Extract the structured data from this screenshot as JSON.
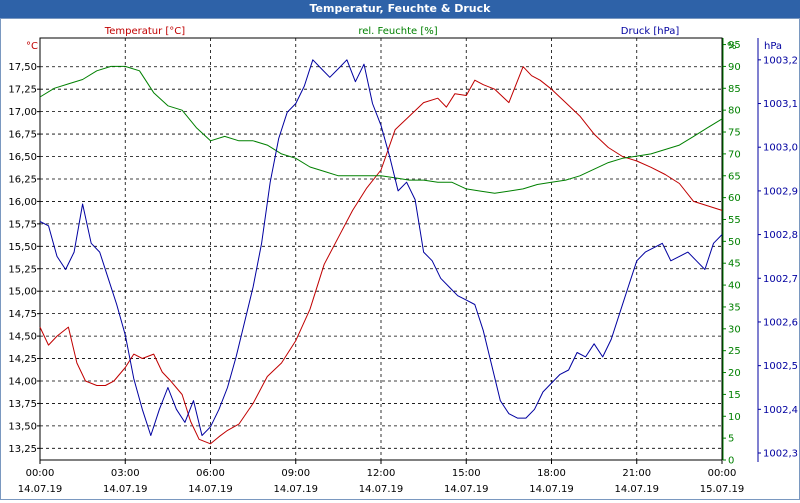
{
  "window": {
    "title": "Temperatur, Feuchte & Druck"
  },
  "chart_data": {
    "type": "line",
    "title": "Temperatur, Feuchte & Druck",
    "x_ticks": [
      {
        "time": "00:00",
        "date": "14.07.19"
      },
      {
        "time": "03:00",
        "date": "14.07.19"
      },
      {
        "time": "06:00",
        "date": "14.07.19"
      },
      {
        "time": "09:00",
        "date": "14.07.19"
      },
      {
        "time": "12:00",
        "date": "14.07.19"
      },
      {
        "time": "15:00",
        "date": "14.07.19"
      },
      {
        "time": "18:00",
        "date": "14.07.19"
      },
      {
        "time": "21:00",
        "date": "14.07.19"
      },
      {
        "time": "00:00",
        "date": "15.07.19"
      }
    ],
    "x_range_hours": [
      0,
      24
    ],
    "axes": {
      "temperature": {
        "unit_label": "°C",
        "title": "Temperatur [°C]",
        "color": "#c00000",
        "ylim": [
          13.12,
          17.82
        ],
        "ticks": [
          "13,25",
          "13,50",
          "13,75",
          "14,00",
          "14,25",
          "14,50",
          "14,75",
          "15,00",
          "15,25",
          "15,50",
          "15,75",
          "16,00",
          "16,25",
          "16,50",
          "16,75",
          "17,00",
          "17,25",
          "17,50"
        ],
        "tick_values": [
          13.25,
          13.5,
          13.75,
          14.0,
          14.25,
          14.5,
          14.75,
          15.0,
          15.25,
          15.5,
          15.75,
          16.0,
          16.25,
          16.5,
          16.75,
          17.0,
          17.25,
          17.5
        ]
      },
      "humidity": {
        "unit_label": "%",
        "title": "rel. Feuchte [%]",
        "color": "#008000",
        "ylim": [
          0,
          96.5
        ],
        "ticks": [
          "0",
          "5",
          "10",
          "15",
          "20",
          "25",
          "30",
          "35",
          "40",
          "45",
          "50",
          "55",
          "60",
          "65",
          "70",
          "75",
          "80",
          "85",
          "90",
          "95"
        ],
        "tick_values": [
          0,
          5,
          10,
          15,
          20,
          25,
          30,
          35,
          40,
          45,
          50,
          55,
          60,
          65,
          70,
          75,
          80,
          85,
          90,
          95
        ]
      },
      "pressure": {
        "unit_label": "hPa",
        "title": "Druck [hPa]",
        "color": "#0000a0",
        "ylim": [
          1002.284,
          1003.25
        ],
        "ticks": [
          "1002,3",
          "1002,4",
          "1002,5",
          "1002,6",
          "1002,7",
          "1002,8",
          "1002,9",
          "1003,0",
          "1003,1",
          "1003,2"
        ],
        "tick_values": [
          1002.3,
          1002.4,
          1002.5,
          1002.6,
          1002.7,
          1002.8,
          1002.9,
          1003.0,
          1003.1,
          1003.2
        ]
      }
    },
    "series": [
      {
        "name": "Temperatur [°C]",
        "axis": "temperature",
        "color": "#c00000",
        "x": [
          0,
          0.3,
          0.6,
          1,
          1.3,
          1.6,
          2,
          2.3,
          2.6,
          3,
          3.3,
          3.6,
          4,
          4.3,
          4.6,
          5,
          5.3,
          5.6,
          6,
          6.3,
          6.6,
          7,
          7.5,
          8,
          8.5,
          9,
          9.5,
          10,
          10.5,
          11,
          11.5,
          12,
          12.5,
          13,
          13.5,
          14,
          14.3,
          14.6,
          15,
          15.3,
          15.6,
          16,
          16.5,
          17,
          17.3,
          17.6,
          18,
          18.5,
          19,
          19.5,
          20,
          20.5,
          21,
          21.5,
          22,
          22.5,
          23,
          23.5,
          24
        ],
        "values": [
          14.6,
          14.4,
          14.5,
          14.6,
          14.2,
          14.0,
          13.95,
          13.95,
          14.0,
          14.15,
          14.3,
          14.25,
          14.3,
          14.1,
          14.0,
          13.85,
          13.55,
          13.35,
          13.3,
          13.38,
          13.45,
          13.52,
          13.75,
          14.05,
          14.2,
          14.45,
          14.8,
          15.3,
          15.6,
          15.9,
          16.15,
          16.35,
          16.8,
          16.95,
          17.1,
          17.15,
          17.05,
          17.2,
          17.18,
          17.35,
          17.3,
          17.25,
          17.1,
          17.5,
          17.4,
          17.35,
          17.25,
          17.1,
          16.95,
          16.75,
          16.6,
          16.5,
          16.45,
          16.38,
          16.3,
          16.2,
          16.0,
          15.95,
          15.9
        ]
      },
      {
        "name": "rel. Feuchte [%]",
        "axis": "humidity",
        "color": "#008000",
        "x": [
          0,
          0.5,
          1,
          1.5,
          2,
          2.5,
          3,
          3.5,
          4,
          4.5,
          5,
          5.5,
          6,
          6.5,
          7,
          7.5,
          8,
          8.5,
          9,
          9.5,
          10,
          10.5,
          11,
          11.5,
          12,
          12.5,
          13,
          13.5,
          14,
          14.5,
          15,
          15.5,
          16,
          16.5,
          17,
          17.5,
          18,
          18.5,
          19,
          19.5,
          20,
          20.5,
          21,
          21.5,
          22,
          22.5,
          23,
          23.5,
          24
        ],
        "values": [
          83,
          85,
          86,
          87,
          89,
          90,
          90,
          89,
          84,
          81,
          80,
          76,
          73,
          74,
          73,
          73,
          72,
          70,
          69,
          67,
          66,
          65,
          65,
          65,
          65,
          64.5,
          64,
          64,
          63.5,
          63.5,
          62,
          61.5,
          61,
          61.5,
          62,
          63,
          63.5,
          64,
          65,
          66.5,
          68,
          69,
          69.5,
          70,
          71,
          72,
          74,
          76,
          78
        ]
      },
      {
        "name": "Druck [hPa]",
        "axis": "pressure",
        "color": "#0000a0",
        "x": [
          0,
          0.3,
          0.6,
          0.9,
          1.2,
          1.5,
          1.8,
          2.1,
          2.4,
          2.7,
          3.0,
          3.3,
          3.6,
          3.9,
          4.2,
          4.5,
          4.8,
          5.1,
          5.4,
          5.7,
          6.0,
          6.3,
          6.6,
          6.9,
          7.2,
          7.5,
          7.8,
          8.1,
          8.4,
          8.7,
          9.0,
          9.3,
          9.6,
          9.9,
          10.2,
          10.5,
          10.8,
          11.1,
          11.4,
          11.7,
          12.0,
          12.3,
          12.6,
          12.9,
          13.2,
          13.5,
          13.8,
          14.1,
          14.4,
          14.7,
          15.0,
          15.3,
          15.6,
          15.9,
          16.2,
          16.5,
          16.8,
          17.1,
          17.4,
          17.7,
          18.0,
          18.3,
          18.6,
          18.9,
          19.2,
          19.5,
          19.8,
          20.1,
          20.4,
          20.7,
          21.0,
          21.3,
          21.6,
          21.9,
          22.2,
          22.5,
          22.8,
          23.1,
          23.4,
          23.7,
          24.0
        ],
        "values": [
          1002.83,
          1002.82,
          1002.75,
          1002.72,
          1002.76,
          1002.87,
          1002.78,
          1002.76,
          1002.7,
          1002.64,
          1002.57,
          1002.47,
          1002.4,
          1002.34,
          1002.4,
          1002.45,
          1002.4,
          1002.37,
          1002.42,
          1002.34,
          1002.36,
          1002.4,
          1002.45,
          1002.52,
          1002.6,
          1002.68,
          1002.78,
          1002.92,
          1003.02,
          1003.08,
          1003.1,
          1003.14,
          1003.2,
          1003.18,
          1003.16,
          1003.18,
          1003.2,
          1003.15,
          1003.19,
          1003.1,
          1003.05,
          1002.98,
          1002.9,
          1002.92,
          1002.88,
          1002.76,
          1002.74,
          1002.7,
          1002.68,
          1002.66,
          1002.65,
          1002.64,
          1002.58,
          1002.5,
          1002.42,
          1002.39,
          1002.38,
          1002.38,
          1002.4,
          1002.44,
          1002.46,
          1002.48,
          1002.49,
          1002.53,
          1002.52,
          1002.55,
          1002.52,
          1002.56,
          1002.62,
          1002.68,
          1002.74,
          1002.76,
          1002.77,
          1002.78,
          1002.74,
          1002.75,
          1002.76,
          1002.74,
          1002.72,
          1002.78,
          1002.8
        ]
      }
    ],
    "grid": true
  }
}
